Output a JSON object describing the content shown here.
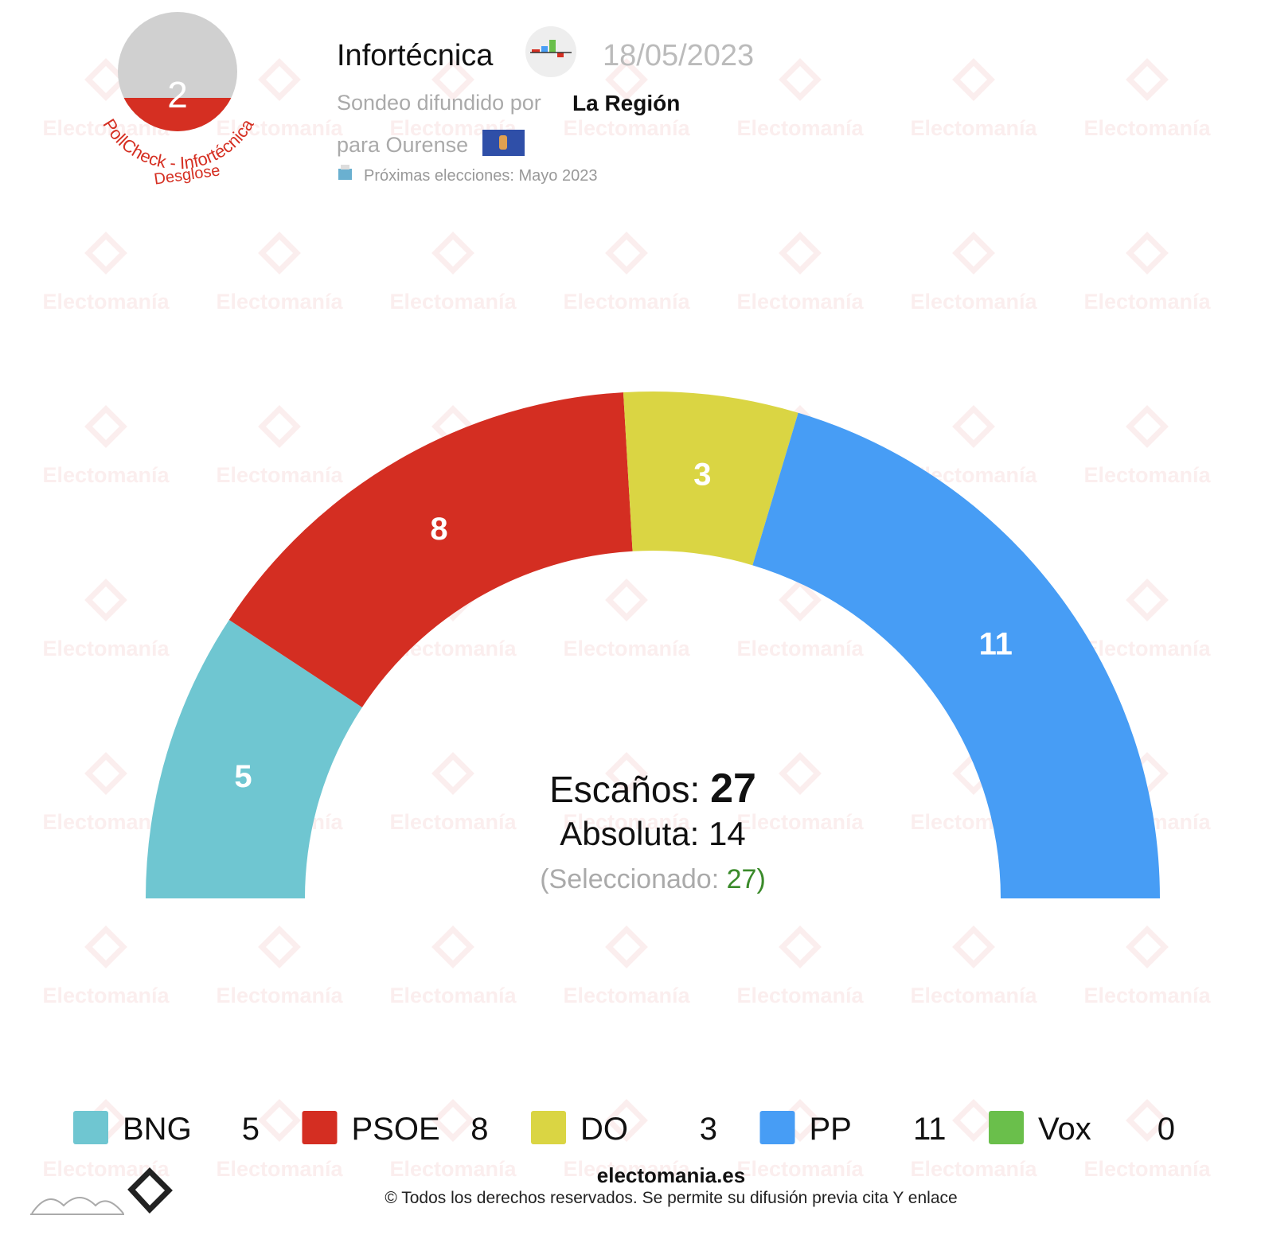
{
  "header": {
    "badge": "2",
    "badge_caption": "PollCheck - Infortécnica",
    "badge_link": "Desglose",
    "pollster": "Infortécnica",
    "date": "18/05/2023",
    "published_by": "Sondeo difundido por",
    "media": "La Región",
    "region": "para Ourense",
    "next_election": "Próximas elecciones: Mayo 2023"
  },
  "watermark": "Electomanía",
  "chart_data": {
    "type": "parliament",
    "categories": [
      "BNG",
      "PSOE",
      "DO",
      "PP",
      "Vox"
    ],
    "values": [
      5,
      8,
      3,
      11,
      0
    ],
    "colors": [
      "#6fc6d1",
      "#d42e22",
      "#dad543",
      "#479df5",
      "#6abf4b"
    ],
    "seats_label": "Escaños:",
    "seats": 27,
    "majority_label": "Absoluta:",
    "majority": 14,
    "selected_label": "(Seleccionado:",
    "selected": 27,
    "selected_close": ")"
  },
  "footer": {
    "site": "electomania.es",
    "copyright": "© Todos los derechos reservados. Se permite su difusión previa cita Y enlace"
  }
}
